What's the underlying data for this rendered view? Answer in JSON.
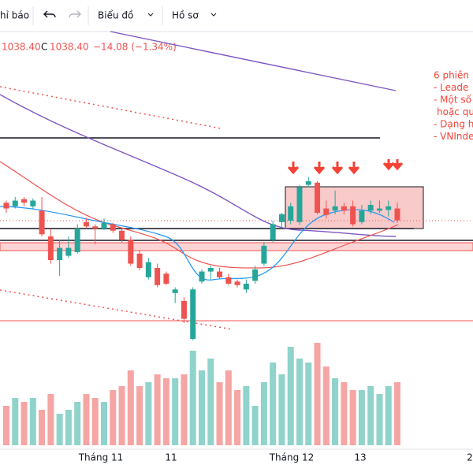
{
  "toolbar": {
    "indicators": "hỉ báo",
    "chart": "Biểu đồ",
    "profile": "Hồ sơ"
  },
  "header": {
    "prev": "1038.40",
    "close_label": "C",
    "close": "1038.40",
    "change": "−14.08 (−1.34%)"
  },
  "notes": [
    "6 phiên",
    "- Leade",
    "- Một số",
    "hoặc qu",
    "- Dạng h",
    "- VNInde"
  ],
  "chart_data": {
    "type": "candlestick",
    "up_color": "#26a69a",
    "down_color": "#ef5350",
    "ylim": [
      862,
      1313
    ],
    "vlim": [
      0,
      150
    ],
    "xlabels": [
      "Tháng 11",
      "11",
      "Tháng 12",
      "13",
      "2"
    ],
    "candles": [
      {
        "open": 1063,
        "high": 1066,
        "low": 1049,
        "close": 1055
      },
      {
        "open": 1058,
        "high": 1071,
        "low": 1055,
        "close": 1066
      },
      {
        "open": 1068,
        "high": 1071,
        "low": 1058,
        "close": 1063
      },
      {
        "open": 1058,
        "high": 1069,
        "low": 1055,
        "close": 1066
      },
      {
        "open": 1052,
        "high": 1071,
        "low": 1016,
        "close": 1019
      },
      {
        "open": 1016,
        "high": 1027,
        "low": 978,
        "close": 983
      },
      {
        "open": 983,
        "high": 1011,
        "low": 961,
        "close": 1000
      },
      {
        "open": 989,
        "high": 1016,
        "low": 986,
        "close": 1000
      },
      {
        "open": 994,
        "high": 1033,
        "low": 992,
        "close": 1027
      },
      {
        "open": 1036,
        "high": 1042,
        "low": 1027,
        "close": 1030
      },
      {
        "open": 1030,
        "high": 1033,
        "low": 1005,
        "close": 1027
      },
      {
        "open": 1027,
        "high": 1041,
        "low": 1025,
        "close": 1035
      },
      {
        "open": 1033,
        "high": 1035,
        "low": 1021,
        "close": 1024
      },
      {
        "open": 1024,
        "high": 1027,
        "low": 1008,
        "close": 1011
      },
      {
        "open": 1011,
        "high": 1016,
        "low": 975,
        "close": 978
      },
      {
        "open": 992,
        "high": 997,
        "low": 969,
        "close": 972
      },
      {
        "open": 959,
        "high": 986,
        "low": 956,
        "close": 980
      },
      {
        "open": 972,
        "high": 978,
        "low": 945,
        "close": 948
      },
      {
        "open": 964,
        "high": 967,
        "low": 948,
        "close": 950
      },
      {
        "open": 937,
        "high": 945,
        "low": 923,
        "close": 942
      },
      {
        "open": 926,
        "high": 931,
        "low": 895,
        "close": 901
      },
      {
        "open": 873,
        "high": 945,
        "low": 871,
        "close": 942
      },
      {
        "open": 953,
        "high": 970,
        "low": 950,
        "close": 967
      },
      {
        "open": 967,
        "high": 975,
        "low": 956,
        "close": 972
      },
      {
        "open": 967,
        "high": 972,
        "low": 956,
        "close": 959
      },
      {
        "open": 959,
        "high": 964,
        "low": 948,
        "close": 950
      },
      {
        "open": 953,
        "high": 956,
        "low": 945,
        "close": 948
      },
      {
        "open": 942,
        "high": 956,
        "low": 937,
        "close": 950
      },
      {
        "open": 954,
        "high": 975,
        "low": 950,
        "close": 970
      },
      {
        "open": 978,
        "high": 1008,
        "low": 975,
        "close": 1003
      },
      {
        "open": 1011,
        "high": 1038,
        "low": 1008,
        "close": 1033
      },
      {
        "open": 1036,
        "high": 1049,
        "low": 1027,
        "close": 1047
      },
      {
        "open": 1038,
        "high": 1063,
        "low": 1033,
        "close": 1058
      },
      {
        "open": 1036,
        "high": 1088,
        "low": 1032,
        "close": 1085
      },
      {
        "open": 1088,
        "high": 1099,
        "low": 1085,
        "close": 1093
      },
      {
        "open": 1091,
        "high": 1093,
        "low": 1047,
        "close": 1049
      },
      {
        "open": 1055,
        "high": 1066,
        "low": 1041,
        "close": 1046
      },
      {
        "open": 1052,
        "high": 1080,
        "low": 1047,
        "close": 1058
      },
      {
        "open": 1058,
        "high": 1063,
        "low": 1047,
        "close": 1052
      },
      {
        "open": 1058,
        "high": 1066,
        "low": 1030,
        "close": 1033
      },
      {
        "open": 1036,
        "high": 1060,
        "low": 1033,
        "close": 1052
      },
      {
        "open": 1052,
        "high": 1066,
        "low": 1047,
        "close": 1060
      },
      {
        "open": 1052,
        "high": 1066,
        "low": 1049,
        "close": 1055
      },
      {
        "open": 1053,
        "high": 1066,
        "low": 1044,
        "close": 1058
      },
      {
        "open": 1055,
        "high": 1063,
        "low": 1035,
        "close": 1038.4
      }
    ],
    "volume": [
      50,
      60,
      55,
      60,
      45,
      65,
      40,
      45,
      55,
      65,
      60,
      55,
      70,
      75,
      95,
      75,
      80,
      90,
      85,
      85,
      90,
      120,
      95,
      110,
      80,
      95,
      70,
      75,
      50,
      80,
      105,
      90,
      125,
      110,
      105,
      130,
      100,
      85,
      80,
      70,
      70,
      75,
      65,
      75,
      80
    ]
  }
}
